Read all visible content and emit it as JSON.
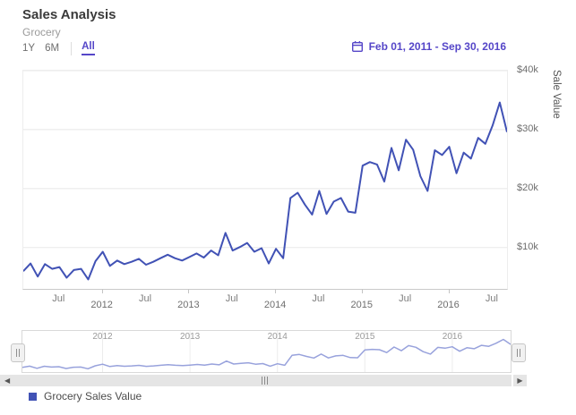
{
  "header": {
    "title": "Sales Analysis",
    "subtitle": "Grocery"
  },
  "range_selector": {
    "options": [
      {
        "label": "1Y",
        "selected": false
      },
      {
        "label": "6M",
        "selected": false
      },
      {
        "label": "All",
        "selected": true
      }
    ]
  },
  "date_range": {
    "label": "Feb 01, 2011 - Sep 30, 2016",
    "icon": "calendar-icon"
  },
  "colors": {
    "accent": "#5546c8",
    "series": "#4152b5",
    "navigator_series": "#98a2dc",
    "grid": "#e8e8e8",
    "axis_text": "#6d6d6d"
  },
  "chart_data": {
    "type": "line",
    "title": "Sales Analysis",
    "series_name": "Grocery Sales Value",
    "ylabel": "Sale Value",
    "ylim": [
      3000,
      40000
    ],
    "grid": "horizontal",
    "legend_position": "bottom-left",
    "x": [
      "2011-02",
      "2011-03",
      "2011-04",
      "2011-05",
      "2011-06",
      "2011-07",
      "2011-08",
      "2011-09",
      "2011-10",
      "2011-11",
      "2011-12",
      "2012-01",
      "2012-02",
      "2012-03",
      "2012-04",
      "2012-05",
      "2012-06",
      "2012-07",
      "2012-08",
      "2012-09",
      "2012-10",
      "2012-11",
      "2012-12",
      "2013-01",
      "2013-02",
      "2013-03",
      "2013-04",
      "2013-05",
      "2013-06",
      "2013-07",
      "2013-08",
      "2013-09",
      "2013-10",
      "2013-11",
      "2013-12",
      "2014-01",
      "2014-02",
      "2014-03",
      "2014-04",
      "2014-05",
      "2014-06",
      "2014-07",
      "2014-08",
      "2014-09",
      "2014-10",
      "2014-11",
      "2014-12",
      "2015-01",
      "2015-02",
      "2015-03",
      "2015-04",
      "2015-05",
      "2015-06",
      "2015-07",
      "2015-08",
      "2015-09",
      "2015-10",
      "2015-11",
      "2015-12",
      "2016-01",
      "2016-02",
      "2016-03",
      "2016-04",
      "2016-05",
      "2016-06",
      "2016-07",
      "2016-08",
      "2016-09"
    ],
    "values": [
      6000,
      7300,
      5100,
      7200,
      6400,
      6700,
      4900,
      6200,
      6400,
      4600,
      7700,
      9300,
      6900,
      7800,
      7200,
      7600,
      8100,
      7100,
      7600,
      8200,
      8800,
      8200,
      7800,
      8400,
      9000,
      8300,
      9500,
      8700,
      12500,
      9500,
      10100,
      10800,
      9300,
      9900,
      7300,
      9800,
      8200,
      18400,
      19300,
      17300,
      15600,
      19600,
      15700,
      17800,
      18400,
      16100,
      15900,
      23900,
      24500,
      24100,
      21200,
      26900,
      23100,
      28300,
      26600,
      22100,
      19600,
      26500,
      25700,
      27100,
      22600,
      26100,
      25100,
      28600,
      27600,
      30700,
      34600,
      29600
    ],
    "yticks": [
      {
        "value": 10000,
        "label": "$10k"
      },
      {
        "value": 20000,
        "label": "$20k"
      },
      {
        "value": 30000,
        "label": "$30k"
      },
      {
        "value": 40000,
        "label": "$40k"
      }
    ],
    "x_ticks": [
      {
        "label": "Jul",
        "index": 5,
        "type": "month"
      },
      {
        "label": "2012",
        "index": 11,
        "type": "year"
      },
      {
        "label": "Jul",
        "index": 17,
        "type": "month"
      },
      {
        "label": "2013",
        "index": 23,
        "type": "year"
      },
      {
        "label": "Jul",
        "index": 29,
        "type": "month"
      },
      {
        "label": "2014",
        "index": 35,
        "type": "year"
      },
      {
        "label": "Jul",
        "index": 41,
        "type": "month"
      },
      {
        "label": "2015",
        "index": 47,
        "type": "year"
      },
      {
        "label": "Jul",
        "index": 53,
        "type": "month"
      },
      {
        "label": "2016",
        "index": 59,
        "type": "year"
      },
      {
        "label": "Jul",
        "index": 65,
        "type": "month"
      }
    ]
  },
  "navigator": {
    "ylim": [
      4000,
      36000
    ],
    "years": [
      {
        "label": "2012",
        "index": 11
      },
      {
        "label": "2013",
        "index": 23
      },
      {
        "label": "2014",
        "index": 35
      },
      {
        "label": "2015",
        "index": 47
      },
      {
        "label": "2016",
        "index": 59
      }
    ]
  },
  "scrollbar": {
    "left_arrow": "◀",
    "right_arrow": "▶"
  },
  "legend": {
    "label": "Grocery Sales Value"
  }
}
